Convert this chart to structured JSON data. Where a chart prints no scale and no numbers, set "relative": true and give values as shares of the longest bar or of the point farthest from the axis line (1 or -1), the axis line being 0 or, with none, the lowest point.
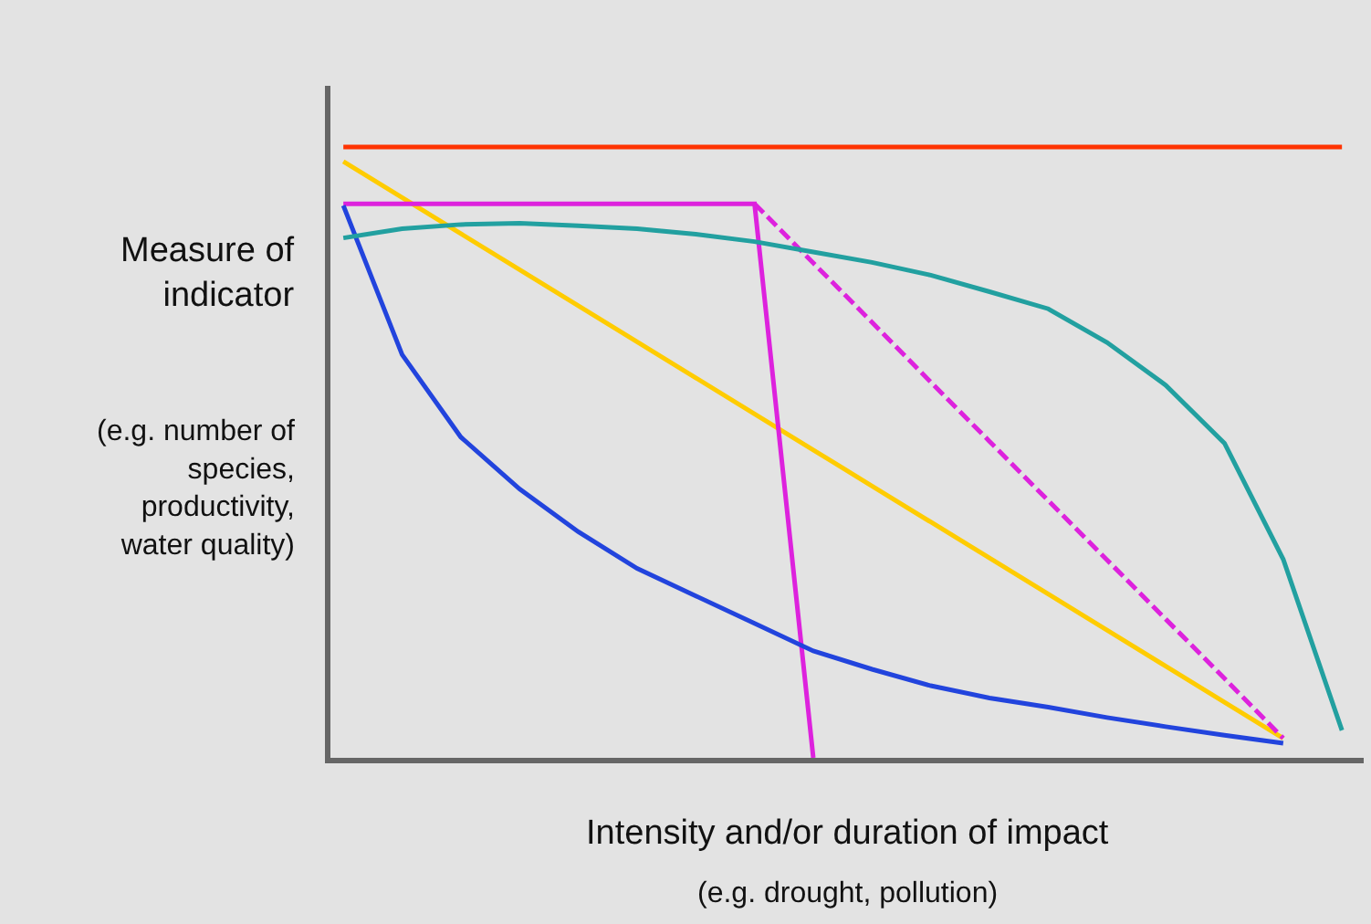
{
  "chart_data": {
    "type": "line",
    "relative": true,
    "xlabel": "Intensity and/or duration of impact",
    "ylabel": "Measure of indicator",
    "annotations": [
      "(e.g. number of species, productivity, water quality)",
      "(e.g. drought, pollution)"
    ],
    "categories": [
      null,
      null,
      null,
      null,
      null,
      null,
      null,
      null,
      null,
      null,
      null,
      null,
      null,
      null,
      null,
      null,
      null,
      null
    ],
    "grid": false,
    "legend": false,
    "marker": "none",
    "series": [
      {
        "color": "#ff3300",
        "values": [
          1.0,
          1.0,
          1.0,
          1.0,
          1.0,
          1.0,
          1.0,
          1.0,
          1.0,
          1.0,
          1.0,
          1.0,
          1.0,
          1.0,
          1.0,
          1.0,
          1.0,
          1.0
        ]
      },
      {
        "color": "#ffcc00",
        "values": [
          0.976,
          0.917,
          0.858,
          0.799,
          0.74,
          0.681,
          0.622,
          0.563,
          0.504,
          0.445,
          0.386,
          0.327,
          0.268,
          0.209,
          0.15,
          0.091,
          0.032,
          null
        ]
      },
      {
        "color": "#dd22dd",
        "values": [
          0.907,
          0.907,
          0.907,
          0.907,
          0.907,
          0.907,
          0.907,
          0.907,
          0.0,
          null,
          null,
          null,
          null,
          null,
          null,
          null,
          null,
          null
        ]
      },
      {
        "color": "#dd22dd",
        "line_style": "dashed",
        "values": [
          null,
          null,
          null,
          null,
          null,
          null,
          null,
          0.907,
          0.81,
          0.713,
          0.615,
          0.518,
          0.421,
          0.324,
          0.227,
          0.13,
          0.032,
          null
        ]
      },
      {
        "color": "#2244dd",
        "values": [
          0.904,
          0.66,
          0.525,
          0.44,
          0.37,
          0.31,
          0.265,
          0.22,
          0.175,
          0.145,
          0.118,
          0.098,
          0.083,
          0.066,
          0.051,
          0.037,
          0.024,
          null
        ]
      },
      {
        "color": "#22a0a0",
        "values": [
          0.851,
          0.866,
          0.873,
          0.875,
          0.871,
          0.866,
          0.857,
          0.845,
          0.828,
          0.811,
          0.79,
          0.763,
          0.735,
          0.68,
          0.61,
          0.515,
          0.325,
          0.045
        ]
      }
    ]
  }
}
